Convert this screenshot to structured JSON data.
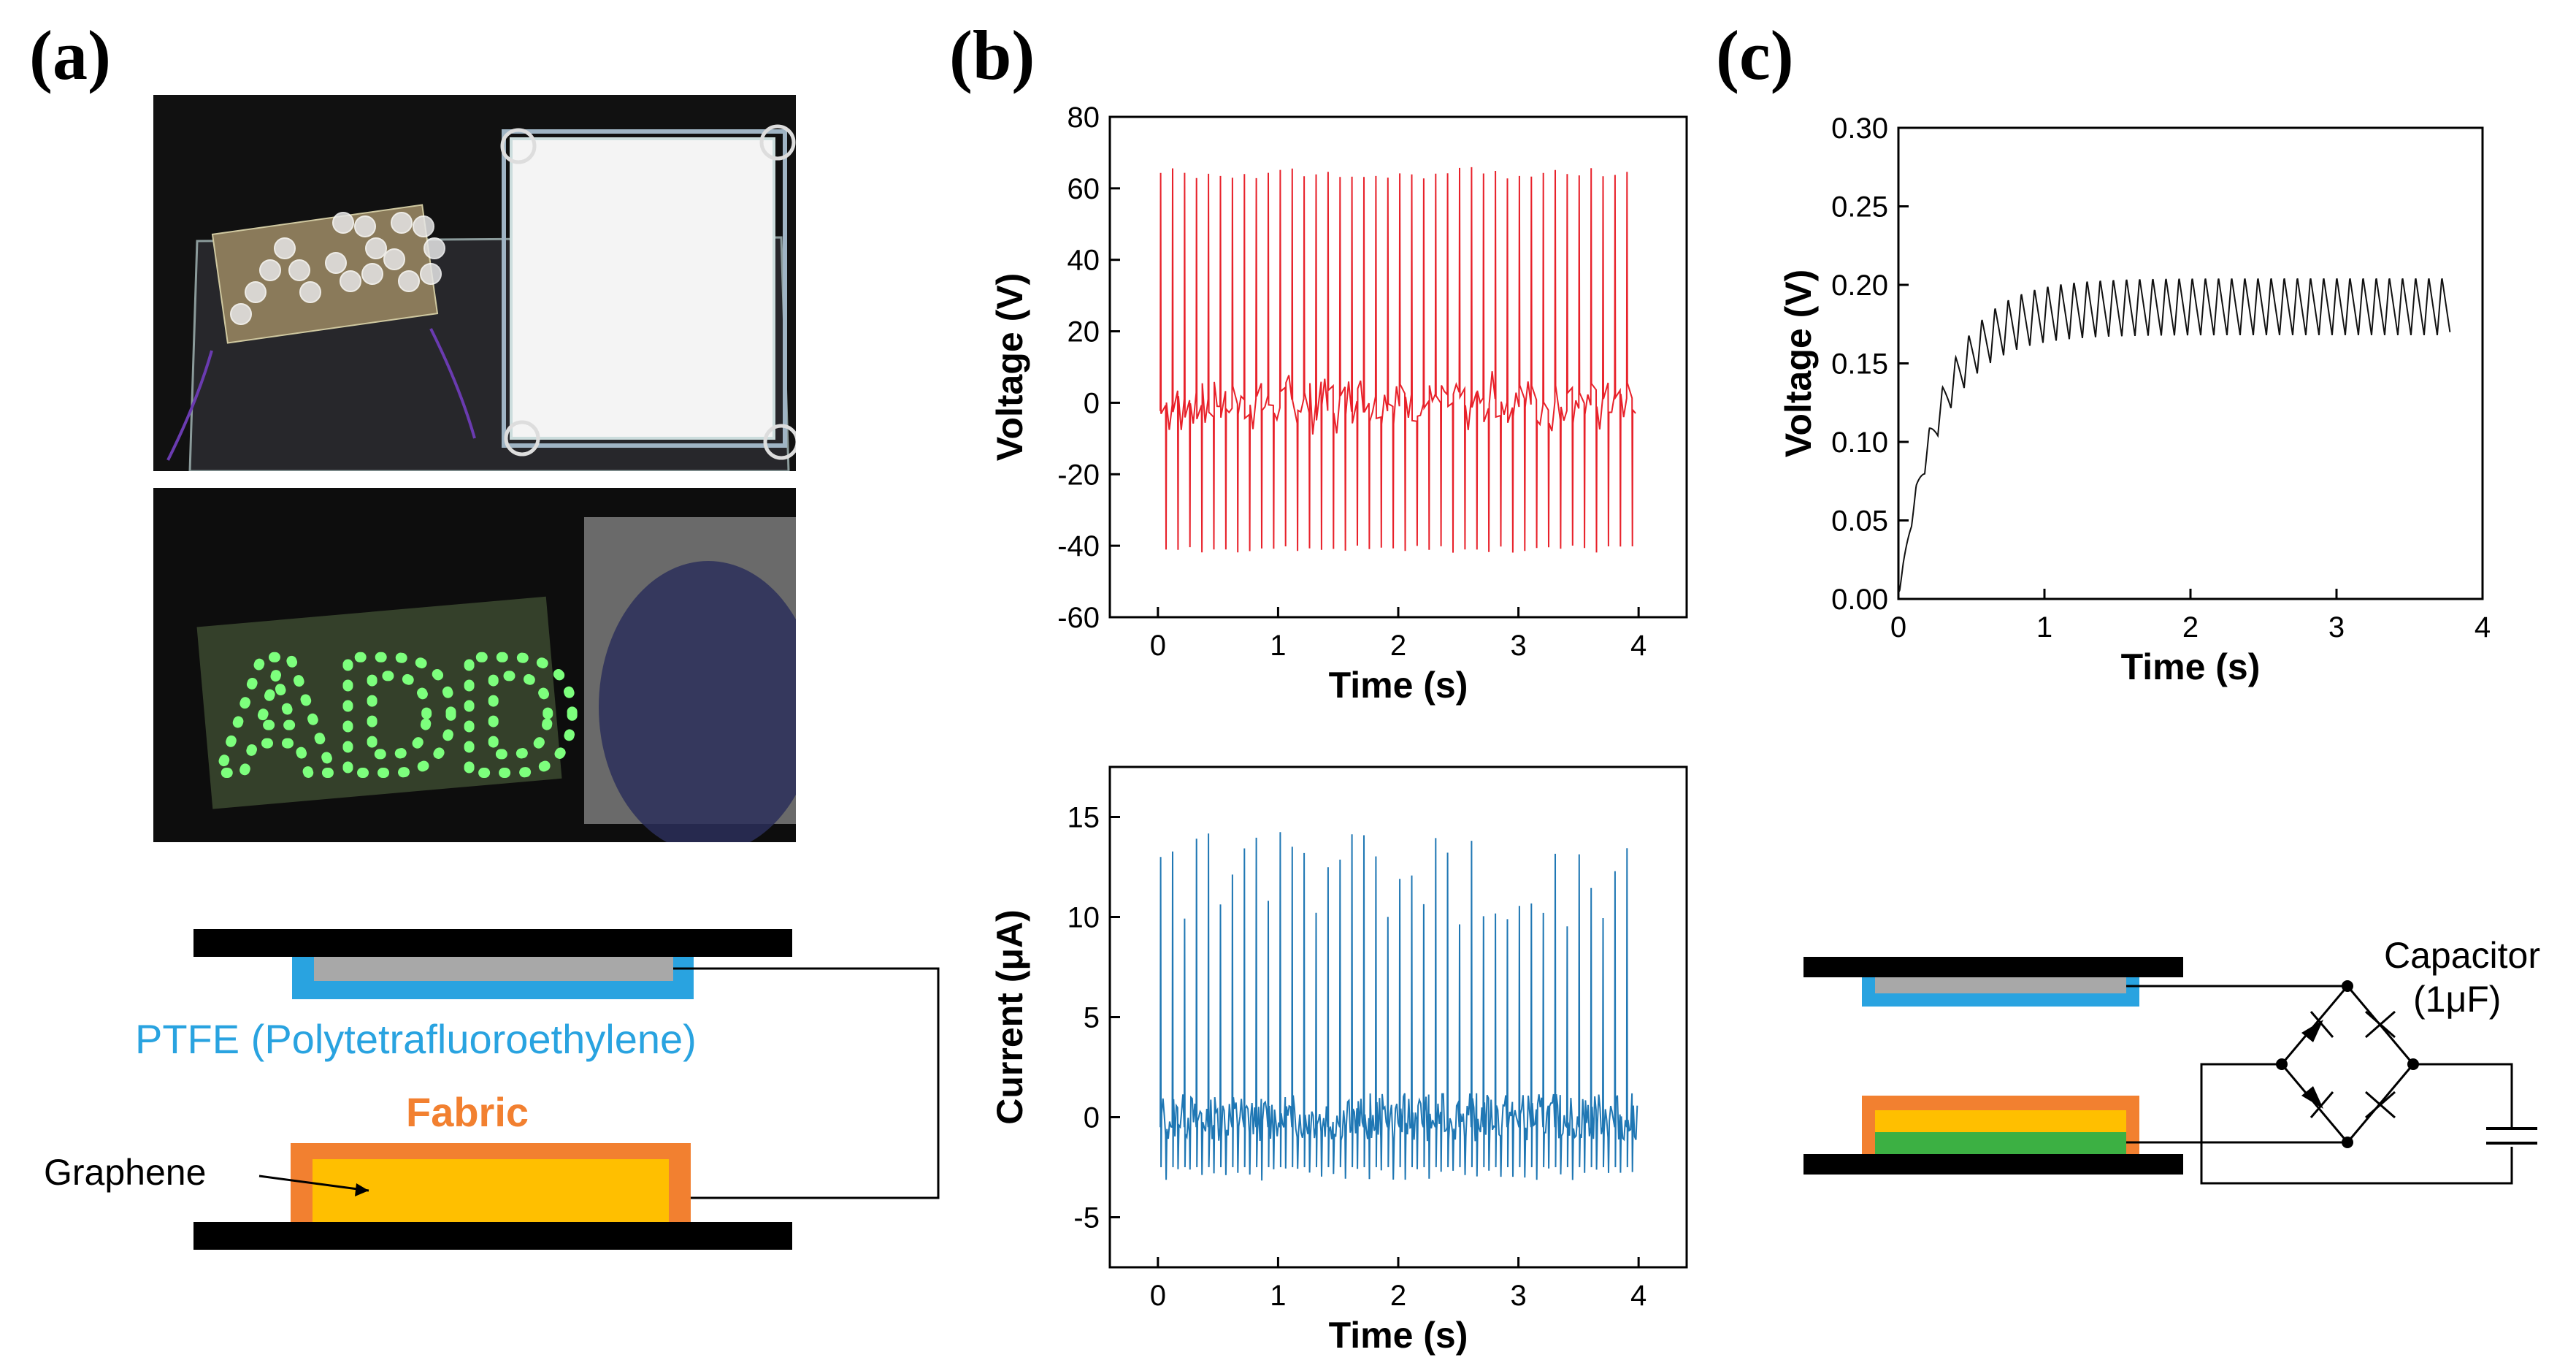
{
  "panels": {
    "a": "(a)",
    "b": "(b)",
    "c": "(c)"
  },
  "schematic_a": {
    "ptfe_label": "PTFE (Polytetrafluoroethylene)",
    "fabric_label": "Fabric",
    "graphene_label": "Graphene"
  },
  "schematic_c": {
    "capacitor_label": "Capacitor",
    "capacitor_value": "(1μF)"
  },
  "photo_bottom_text": "ADD",
  "colors": {
    "voltage_b": "#e8212a",
    "current_b": "#1f77b4",
    "voltage_c": "#111111",
    "ptfe": "#29a3e0",
    "fabric": "#f28030",
    "graphene": "#ffbf00",
    "green_layer": "#3cb043",
    "electrode": "#a8a8a8"
  },
  "chart_data": [
    {
      "id": "b_voltage",
      "type": "line",
      "title": "",
      "xlabel": "Time (s)",
      "ylabel": "Voltage (V)",
      "xlim": [
        -0.4,
        4.4
      ],
      "ylim": [
        -60,
        80
      ],
      "xticks": [
        0,
        1,
        2,
        3,
        4
      ],
      "yticks": [
        -60,
        -40,
        -20,
        0,
        20,
        40,
        60,
        80
      ],
      "series": [
        {
          "name": "Voltage",
          "pulses": 40,
          "t_start": 0.02,
          "t_end": 4.0,
          "peak_max": 66,
          "peak_min": -42,
          "baseline_noise": 6
        }
      ]
    },
    {
      "id": "b_current",
      "type": "line",
      "title": "",
      "xlabel": "Time (s)",
      "ylabel": "Current (μA)",
      "xlim": [
        -0.4,
        4.4
      ],
      "ylim": [
        -7.5,
        17.5
      ],
      "xticks": [
        0,
        1,
        2,
        3,
        4
      ],
      "yticks": [
        -5,
        0,
        5,
        10,
        15
      ],
      "series": [
        {
          "name": "Current",
          "pulses": 40,
          "t_start": 0.02,
          "t_end": 4.0,
          "peak_max": 14.3,
          "peak_min": -3.2,
          "baseline": 0,
          "baseline_noise": 1.2
        }
      ]
    },
    {
      "id": "c_voltage",
      "type": "line",
      "title": "",
      "xlabel": "Time (s)",
      "ylabel": "Voltage (V)",
      "xlim": [
        0,
        4
      ],
      "ylim": [
        0,
        0.3
      ],
      "xticks": [
        0,
        1,
        2,
        3,
        4
      ],
      "yticks": [
        0.0,
        0.05,
        0.1,
        0.15,
        0.2,
        0.25,
        0.3
      ],
      "ytick_labels": [
        "0.00",
        "0.05",
        "0.10",
        "0.15",
        "0.20",
        "0.25",
        "0.30"
      ],
      "series": [
        {
          "name": "Capacitor voltage",
          "t_end": 3.78,
          "plateau_high": 0.205,
          "plateau_low": 0.168,
          "period": 0.09
        }
      ]
    }
  ]
}
